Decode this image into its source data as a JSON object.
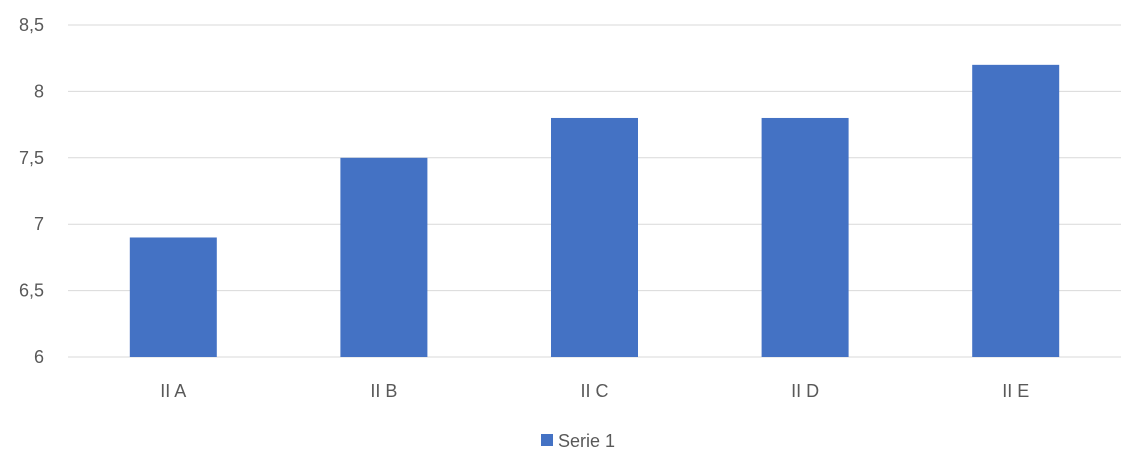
{
  "chart_data": {
    "type": "bar",
    "categories": [
      "II A",
      "II B",
      "II C",
      "II D",
      "II E"
    ],
    "series": [
      {
        "name": "Serie 1",
        "values": [
          6.9,
          7.5,
          7.8,
          7.8,
          8.2
        ],
        "color": "#4472C4"
      }
    ],
    "ylim": [
      6,
      8.5
    ],
    "yticks": [
      6,
      6.5,
      7,
      7.5,
      8,
      8.5
    ],
    "ytick_labels": [
      "6",
      "6,5",
      "7",
      "7,5",
      "8",
      "8,5"
    ],
    "grid": true,
    "legend": "bottom-center",
    "gridline_color": "#D9D9D9",
    "text_color": "#595959"
  }
}
